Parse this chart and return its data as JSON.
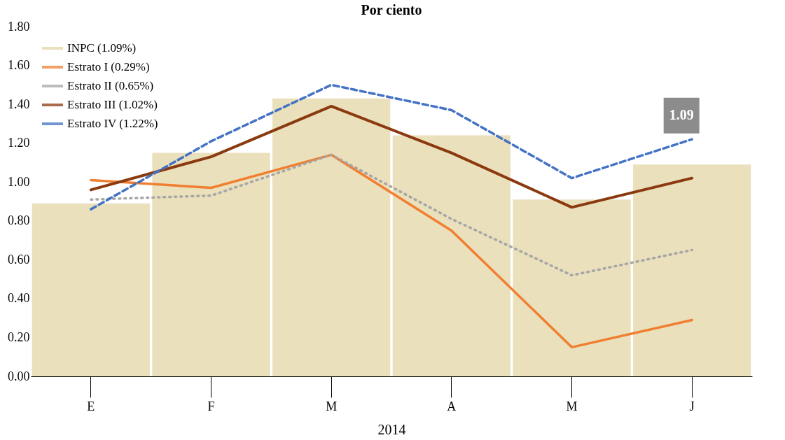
{
  "chart_data": {
    "type": "line",
    "title": "Por ciento",
    "xlabel": "2014",
    "categories": [
      "E",
      "F",
      "M",
      "A",
      "M",
      "J"
    ],
    "series": [
      {
        "name": "INPC (1.09%)",
        "type": "bar",
        "color": "#e3d6a6",
        "values": [
          0.89,
          1.15,
          1.43,
          1.24,
          0.91,
          1.09
        ]
      },
      {
        "name": "Estrato I (0.29%)",
        "color": "#f07f32",
        "line_style": "solid",
        "values": [
          1.01,
          0.97,
          1.14,
          0.75,
          0.15,
          0.29
        ]
      },
      {
        "name": "Estrato II (0.65%)",
        "color": "#a6a6a6",
        "line_style": "dotted",
        "values": [
          0.91,
          0.93,
          1.14,
          0.81,
          0.52,
          0.65
        ]
      },
      {
        "name": "Estrato III (1.02%)",
        "color": "#8b3a0f",
        "line_style": "solid",
        "values": [
          0.96,
          1.13,
          1.39,
          1.15,
          0.87,
          1.02
        ]
      },
      {
        "name": "Estrato IV (1.22%)",
        "color": "#4472c4",
        "line_style": "dashed",
        "values": [
          0.86,
          1.21,
          1.5,
          1.37,
          1.02,
          1.22
        ]
      }
    ],
    "ylim": [
      0,
      1.8
    ],
    "yticks": [
      {
        "value": 0,
        "label": "0.00"
      },
      {
        "value": 0.2,
        "label": "0.20"
      },
      {
        "value": 0.4,
        "label": "0.40"
      },
      {
        "value": 0.6,
        "label": "0.60"
      },
      {
        "value": 0.8,
        "label": "0.80"
      },
      {
        "value": 1,
        "label": "1.00"
      },
      {
        "value": 1.2,
        "label": "1.20"
      },
      {
        "value": 1.4,
        "label": "1.40"
      },
      {
        "value": 1.6,
        "label": "1.60"
      },
      {
        "value": 1.8,
        "label": "1.80"
      }
    ],
    "legend": "top left",
    "annotations": [
      {
        "text": "1.09",
        "x": "J",
        "y": 1.09
      }
    ]
  }
}
